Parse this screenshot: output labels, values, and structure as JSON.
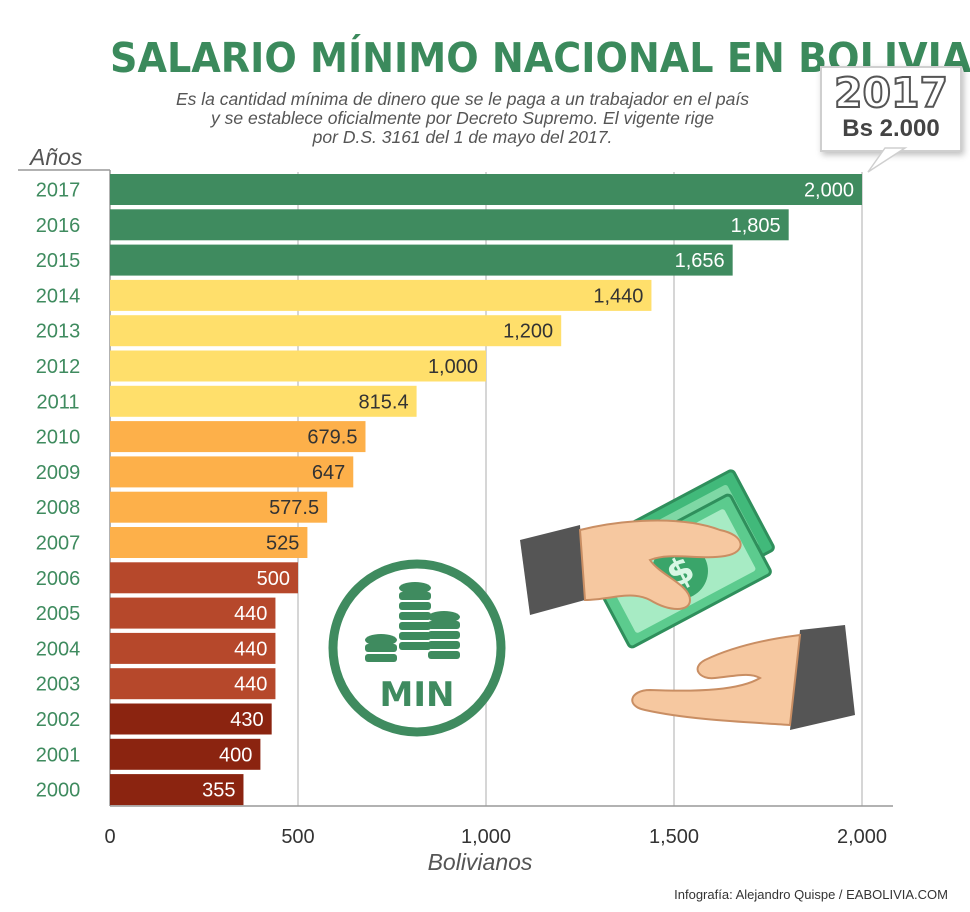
{
  "title": "SALARIO MÍNIMO NACIONAL EN BOLIVIA",
  "subtitle": [
    "Es la cantidad mínima de dinero que se le paga a un trabajador en el país",
    "y se establece oficialmente por Decreto Supremo. El vigente rige",
    "por D.S. 3161 del 1 de mayo del 2017."
  ],
  "badge": {
    "year": "2017",
    "amount": "Bs 2.000"
  },
  "icon": {
    "label": "MIN",
    "name": "coin-stack-icon"
  },
  "illustration": {
    "name": "hands-exchanging-money-icon"
  },
  "credit": "Infografía: Alejandro Quispe / EABOLIVIA.COM",
  "colors": {
    "green": "#3f8b5f",
    "yellow": "#ffdf6b",
    "orange": "#fdb04a",
    "rust": "#b6482b",
    "darkred": "#8b2410",
    "title": "#3b8a5c"
  },
  "chart_data": {
    "type": "bar",
    "orientation": "horizontal",
    "ylabel": "Años",
    "xlabel": "Bolivianos",
    "xlim": [
      0,
      2000
    ],
    "xticks": [
      "0",
      "500",
      "1,000",
      "1,500",
      "2,000"
    ],
    "grid": true,
    "categories": [
      "2017",
      "2016",
      "2015",
      "2014",
      "2013",
      "2012",
      "2011",
      "2010",
      "2009",
      "2008",
      "2007",
      "2006",
      "2005",
      "2004",
      "2003",
      "2002",
      "2001",
      "2000"
    ],
    "values": [
      2000,
      1805,
      1656,
      1440,
      1200,
      1000,
      815.4,
      679.5,
      647,
      577.5,
      525,
      500,
      440,
      440,
      440,
      430,
      400,
      355
    ],
    "value_labels": [
      "2,000",
      "1,805",
      "1,656",
      "1,440",
      "1,200",
      "1,000",
      "815.4",
      "679.5",
      "647",
      "577.5",
      "525",
      "500",
      "440",
      "440",
      "440",
      "430",
      "400",
      "355"
    ],
    "bar_colors": [
      "green",
      "green",
      "green",
      "yellow",
      "yellow",
      "yellow",
      "yellow",
      "orange",
      "orange",
      "orange",
      "orange",
      "rust",
      "rust",
      "rust",
      "rust",
      "darkred",
      "darkred",
      "darkred"
    ]
  }
}
